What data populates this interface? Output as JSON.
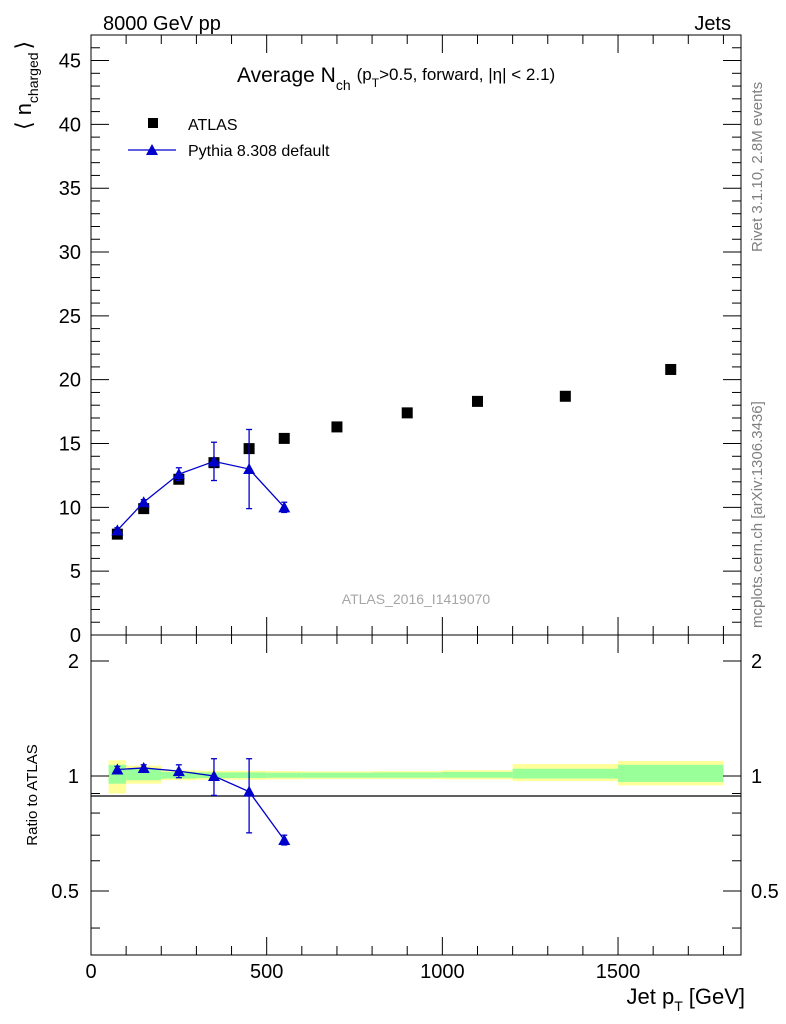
{
  "header": {
    "left": "8000 GeV pp",
    "right": "Jets"
  },
  "side_labels": {
    "rivet": "Rivet 3.1.10,  2.8M events",
    "source": "mcplots.cern.ch [arXiv:1306.3436]"
  },
  "colors": {
    "atlas": "#000000",
    "pythia": "#0000cc",
    "band_inner": "#99ff99",
    "band_outer": "#ffff99"
  },
  "chart_data": [
    {
      "type": "scatter",
      "title_main": "Average N",
      "title_sub": "ch",
      "title_cut_pre": "(p",
      "title_cut_sub": "T",
      "title_cut_post": ">0.5, forward, |η| < 2.1)",
      "ylabel": "⟨ n",
      "ylabel_sub": "charged",
      "ylabel_close": "⟩",
      "watermark": "ATLAS_2016_I1419070",
      "xlim": [
        0,
        1850
      ],
      "ylim": [
        0,
        47
      ],
      "yticks": [
        0,
        5,
        10,
        15,
        20,
        25,
        30,
        35,
        40,
        45
      ],
      "legend": [
        "ATLAS",
        "Pythia 8.308 default"
      ],
      "series": [
        {
          "name": "ATLAS",
          "x": [
            75,
            150,
            250,
            350,
            450,
            550,
            700,
            900,
            1100,
            1350,
            1650
          ],
          "y": [
            7.9,
            9.9,
            12.2,
            13.5,
            14.6,
            15.4,
            16.3,
            17.4,
            18.3,
            18.7,
            20.8
          ]
        },
        {
          "name": "Pythia 8.308 default",
          "x": [
            75,
            150,
            250,
            350,
            450,
            550
          ],
          "y": [
            8.2,
            10.4,
            12.6,
            13.6,
            13.0,
            10.0
          ],
          "err": [
            0.2,
            0.2,
            0.5,
            1.5,
            3.1,
            0.4
          ]
        }
      ]
    },
    {
      "type": "scatter",
      "ylabel": "Ratio to ATLAS",
      "xlabel": "Jet p",
      "xlabel_sub": "T",
      "xlabel_unit": "[GeV]",
      "xlim": [
        0,
        1850
      ],
      "ylim": [
        0.34,
        2.34
      ],
      "xticks": [
        0,
        500,
        1000,
        1500
      ],
      "yticks": [
        0.5,
        1,
        2
      ],
      "bands": [
        {
          "x0": 50,
          "x1": 100,
          "inner": [
            0.955,
            1.07
          ],
          "outer": [
            0.9,
            1.1
          ]
        },
        {
          "x0": 100,
          "x1": 200,
          "inner": [
            0.975,
            1.045
          ],
          "outer": [
            0.955,
            1.065
          ]
        },
        {
          "x0": 200,
          "x1": 300,
          "inner": [
            0.985,
            1.025
          ],
          "outer": [
            0.975,
            1.035
          ]
        },
        {
          "x0": 300,
          "x1": 400,
          "inner": [
            0.988,
            1.022
          ],
          "outer": [
            0.978,
            1.032
          ]
        },
        {
          "x0": 400,
          "x1": 500,
          "inner": [
            0.988,
            1.022
          ],
          "outer": [
            0.978,
            1.032
          ]
        },
        {
          "x0": 500,
          "x1": 600,
          "inner": [
            0.99,
            1.02
          ],
          "outer": [
            0.98,
            1.03
          ]
        },
        {
          "x0": 600,
          "x1": 800,
          "inner": [
            0.99,
            1.02
          ],
          "outer": [
            0.982,
            1.028
          ]
        },
        {
          "x0": 800,
          "x1": 1000,
          "inner": [
            0.99,
            1.022
          ],
          "outer": [
            0.982,
            1.03
          ]
        },
        {
          "x0": 1000,
          "x1": 1200,
          "inner": [
            0.99,
            1.025
          ],
          "outer": [
            0.98,
            1.035
          ]
        },
        {
          "x0": 1200,
          "x1": 1500,
          "inner": [
            0.985,
            1.045
          ],
          "outer": [
            0.97,
            1.075
          ]
        },
        {
          "x0": 1500,
          "x1": 1800,
          "inner": [
            0.965,
            1.07
          ],
          "outer": [
            0.945,
            1.095
          ]
        }
      ],
      "series": [
        {
          "name": "Pythia 8.308 default",
          "x": [
            75,
            150,
            250,
            350,
            450,
            550
          ],
          "y": [
            1.04,
            1.05,
            1.03,
            1.0,
            0.91,
            0.68
          ],
          "err": [
            0.02,
            0.02,
            0.04,
            0.11,
            0.2,
            0.02
          ]
        }
      ]
    }
  ]
}
